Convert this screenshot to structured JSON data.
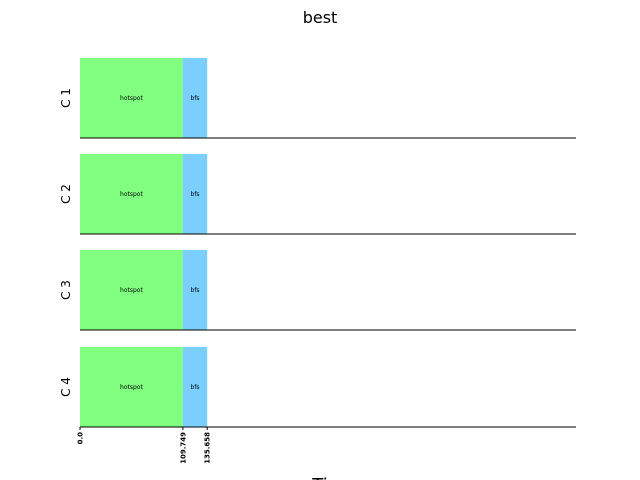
{
  "chart_data": {
    "type": "bar",
    "title": "best",
    "xlabel": "Ti",
    "ylabel": "",
    "categories": [
      "C 1",
      "C 2",
      "C 3",
      "C 4"
    ],
    "series": [
      {
        "name": "hotspot",
        "color": "#80ff80",
        "values": [
          [
            0.0,
            109.749
          ],
          [
            0.0,
            109.749
          ],
          [
            0.0,
            109.749
          ],
          [
            0.0,
            109.749
          ]
        ]
      },
      {
        "name": "bfs",
        "color": "#7acfff",
        "values": [
          [
            109.749,
            135.658
          ],
          [
            109.749,
            135.658
          ],
          [
            109.749,
            135.658
          ],
          [
            109.749,
            135.658
          ]
        ]
      }
    ],
    "xticks": [
      "0.0",
      "109.749",
      "135.658"
    ],
    "xlim": [
      0,
      529
    ],
    "grid": false,
    "legend": "none"
  }
}
